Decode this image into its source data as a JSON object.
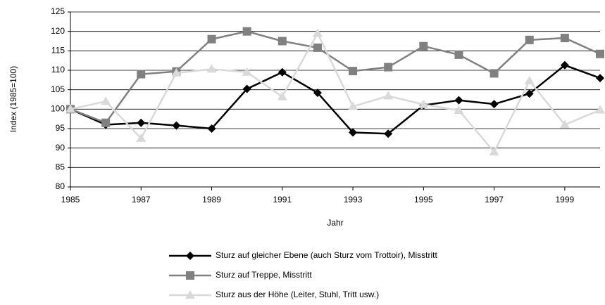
{
  "chart_data": {
    "type": "line",
    "x_label": "Jahr",
    "y_label": "Index (1985=100)",
    "x": [
      1985,
      1986,
      1987,
      1988,
      1989,
      1990,
      1991,
      1992,
      1993,
      1994,
      1995,
      1996,
      1997,
      1998,
      1999,
      2000
    ],
    "series": [
      {
        "name": "Sturz auf gleicher Ebene (auch Sturz vom Trottoir), Misstritt",
        "color": "#000000",
        "marker": "diamond",
        "values": [
          100,
          96,
          96.5,
          95.8,
          95,
          105.2,
          109.5,
          104.2,
          94,
          93.7,
          101,
          102.3,
          101.3,
          104,
          111.3,
          108
        ]
      },
      {
        "name": "Sturz auf Treppe, Misstritt",
        "color": "#808080",
        "marker": "square",
        "values": [
          100,
          96.5,
          109,
          109.7,
          118,
          120,
          117.5,
          115.8,
          109.8,
          110.8,
          116.2,
          114,
          109.2,
          117.8,
          118.3,
          114.2
        ]
      },
      {
        "name": "Sturz aus der Höhe (Leiter, Stuhl, Tritt usw.)",
        "color": "#d9d9d9",
        "marker": "triangle",
        "values": [
          100,
          102,
          92.5,
          109.3,
          110.3,
          109.5,
          103.2,
          119.5,
          100.7,
          103.4,
          101.2,
          99.7,
          89,
          107.3,
          96,
          99.8
        ]
      }
    ],
    "xlim": [
      1985,
      2000
    ],
    "xticks": [
      1985,
      1987,
      1989,
      1991,
      1993,
      1995,
      1997,
      1999
    ],
    "ylim": [
      80,
      125
    ],
    "yticks": [
      80,
      85,
      90,
      95,
      100,
      105,
      110,
      115,
      120,
      125
    ],
    "grid": true,
    "legend": "bottom"
  }
}
